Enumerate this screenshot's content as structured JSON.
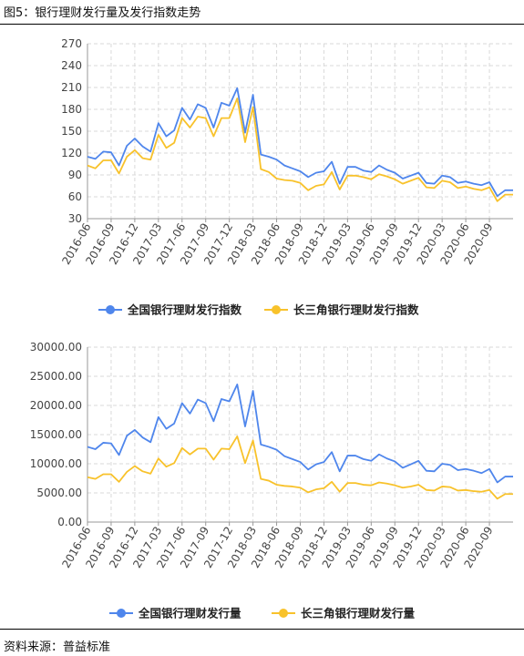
{
  "figure_title": "图5：银行理财发行量及发行指数走势",
  "source": "资料来源：普益标准",
  "colors": {
    "national": "#4f86ec",
    "yrd": "#f8c22b",
    "grid": "#d9d9d9",
    "axis": "#999999"
  },
  "chart_data": [
    {
      "type": "line",
      "title": "",
      "xlabel": "",
      "ylabel": "",
      "ylim": [
        30,
        270
      ],
      "yticks": [
        "30",
        "60",
        "90",
        "120",
        "150",
        "180",
        "210",
        "240",
        "270"
      ],
      "grid": true,
      "legend_position": "bottom",
      "xtick_labels": [
        "2016-06",
        "2016-09",
        "2016-12",
        "2017-03",
        "2017-06",
        "2017-09",
        "2017-12",
        "2018-03",
        "2018-06",
        "2018-09",
        "2018-12",
        "2019-03",
        "2019-06",
        "2019-09",
        "2019-12",
        "2020-03",
        "2020-06",
        "2020-09"
      ],
      "x": [
        "2016-06",
        "2016-07",
        "2016-08",
        "2016-09",
        "2016-10",
        "2016-11",
        "2016-12",
        "2017-01",
        "2017-02",
        "2017-03",
        "2017-04",
        "2017-05",
        "2017-06",
        "2017-07",
        "2017-08",
        "2017-09",
        "2017-10",
        "2017-11",
        "2017-12",
        "2018-01",
        "2018-02",
        "2018-03",
        "2018-04",
        "2018-05",
        "2018-06",
        "2018-07",
        "2018-08",
        "2018-09",
        "2018-10",
        "2018-11",
        "2018-12",
        "2019-01",
        "2019-02",
        "2019-03",
        "2019-04",
        "2019-05",
        "2019-06",
        "2019-07",
        "2019-08",
        "2019-09",
        "2019-10",
        "2019-11",
        "2019-12",
        "2020-01",
        "2020-02",
        "2020-03",
        "2020-04",
        "2020-05",
        "2020-06",
        "2020-07",
        "2020-08",
        "2020-09",
        "2020-10",
        "2020-11",
        "2020-12"
      ],
      "series": [
        {
          "name": "全国银行理财发行指数",
          "color": "#4f86ec",
          "values": [
            115,
            112,
            122,
            121,
            103,
            130,
            140,
            129,
            122,
            161,
            143,
            151,
            182,
            166,
            187,
            182,
            155,
            189,
            185,
            209,
            148,
            200,
            118,
            115,
            111,
            103,
            99,
            95,
            87,
            93,
            95,
            108,
            78,
            101,
            101,
            96,
            94,
            103,
            97,
            93,
            85,
            89,
            93,
            79,
            78,
            89,
            87,
            79,
            81,
            78,
            76,
            80,
            61,
            69,
            69
          ]
        },
        {
          "name": "长三角银行理财发行指数",
          "color": "#f8c22b",
          "values": [
            103,
            99,
            110,
            110,
            92,
            115,
            124,
            113,
            111,
            145,
            127,
            134,
            168,
            155,
            170,
            168,
            143,
            168,
            168,
            195,
            135,
            183,
            98,
            94,
            85,
            83,
            82,
            79,
            69,
            75,
            77,
            94,
            70,
            89,
            89,
            87,
            84,
            91,
            88,
            84,
            78,
            82,
            86,
            73,
            72,
            82,
            80,
            72,
            74,
            71,
            69,
            73,
            54,
            63,
            63
          ]
        }
      ]
    },
    {
      "type": "line",
      "title": "",
      "xlabel": "",
      "ylabel": "",
      "ylim": [
        0,
        30000
      ],
      "yticks": [
        "0.00",
        "5000.00",
        "10000.00",
        "15000.00",
        "20000.00",
        "25000.00",
        "30000.00"
      ],
      "grid": true,
      "legend_position": "bottom",
      "xtick_labels": [
        "2016-06",
        "2016-09",
        "2016-12",
        "2017-03",
        "2017-06",
        "2017-09",
        "2017-12",
        "2018-03",
        "2018-06",
        "2018-09",
        "2018-12",
        "2019-03",
        "2019-06",
        "2019-09",
        "2019-12",
        "2020-03",
        "2020-06",
        "2020-09"
      ],
      "x": [
        "2016-06",
        "2016-07",
        "2016-08",
        "2016-09",
        "2016-10",
        "2016-11",
        "2016-12",
        "2017-01",
        "2017-02",
        "2017-03",
        "2017-04",
        "2017-05",
        "2017-06",
        "2017-07",
        "2017-08",
        "2017-09",
        "2017-10",
        "2017-11",
        "2017-12",
        "2018-01",
        "2018-02",
        "2018-03",
        "2018-04",
        "2018-05",
        "2018-06",
        "2018-07",
        "2018-08",
        "2018-09",
        "2018-10",
        "2018-11",
        "2018-12",
        "2019-01",
        "2019-02",
        "2019-03",
        "2019-04",
        "2019-05",
        "2019-06",
        "2019-07",
        "2019-08",
        "2019-09",
        "2019-10",
        "2019-11",
        "2019-12",
        "2020-01",
        "2020-02",
        "2020-03",
        "2020-04",
        "2020-05",
        "2020-06",
        "2020-07",
        "2020-08",
        "2020-09",
        "2020-10",
        "2020-11",
        "2020-12"
      ],
      "series": [
        {
          "name": "全国银行理财发行量",
          "color": "#4f86ec",
          "values": [
            12900,
            12500,
            13600,
            13500,
            11500,
            14800,
            15800,
            14500,
            13700,
            18000,
            16000,
            16900,
            20400,
            18600,
            21000,
            20400,
            17300,
            21100,
            20700,
            23600,
            16400,
            22500,
            13300,
            12900,
            12400,
            11300,
            10800,
            10300,
            9000,
            9900,
            10300,
            12000,
            8700,
            11400,
            11400,
            10800,
            10500,
            11600,
            10900,
            10400,
            9300,
            9900,
            10500,
            8800,
            8700,
            10000,
            9800,
            8900,
            9100,
            8800,
            8400,
            9100,
            6800,
            7800,
            7800
          ]
        },
        {
          "name": "长三角银行理财发行量",
          "color": "#f8c22b",
          "values": [
            7700,
            7400,
            8200,
            8200,
            6900,
            8600,
            9600,
            8700,
            8300,
            10900,
            9500,
            10100,
            12700,
            11600,
            12600,
            12600,
            10700,
            12600,
            12500,
            14700,
            10100,
            14000,
            7400,
            7100,
            6400,
            6200,
            6100,
            5900,
            5100,
            5600,
            5800,
            6900,
            5200,
            6700,
            6700,
            6400,
            6300,
            6800,
            6600,
            6300,
            5900,
            6100,
            6400,
            5500,
            5400,
            6100,
            6000,
            5400,
            5500,
            5300,
            5200,
            5500,
            4000,
            4800,
            4800
          ]
        }
      ]
    }
  ]
}
